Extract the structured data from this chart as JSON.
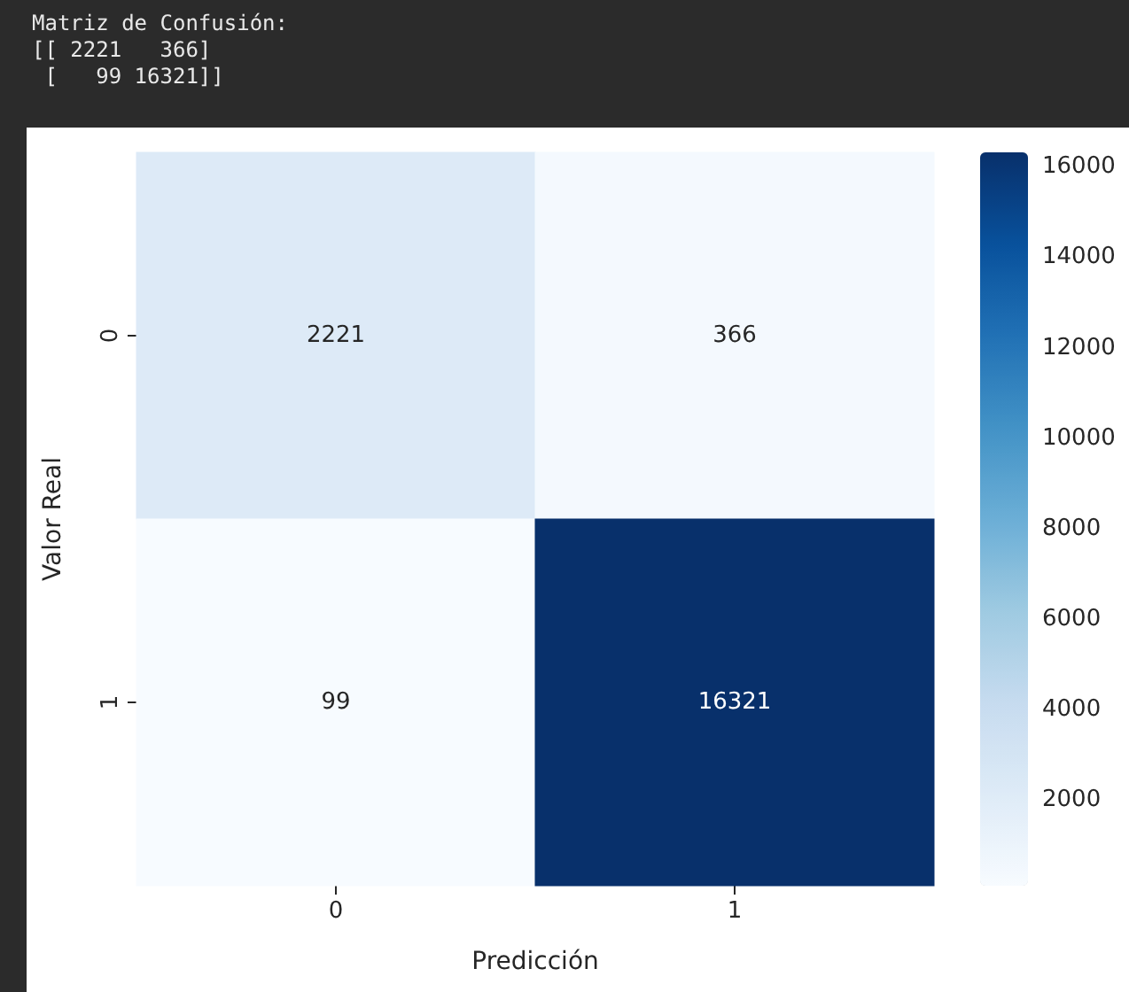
{
  "chart_data": {
    "type": "heatmap",
    "xlabel": "Predicción",
    "ylabel": "Valor Real",
    "annotations": [
      "Matriz de Confusión:",
      "[[ 2221   366]",
      " [   99 16321]]"
    ],
    "categories": [
      "0",
      "1"
    ],
    "y_categories": [
      "0",
      "1"
    ],
    "cells": [
      [
        2221,
        366
      ],
      [
        99,
        16321
      ]
    ],
    "clim": [
      99,
      16321
    ],
    "cticks": [
      2000,
      4000,
      6000,
      8000,
      10000,
      12000,
      14000,
      16000
    ],
    "grid": false,
    "data_labels": true
  }
}
